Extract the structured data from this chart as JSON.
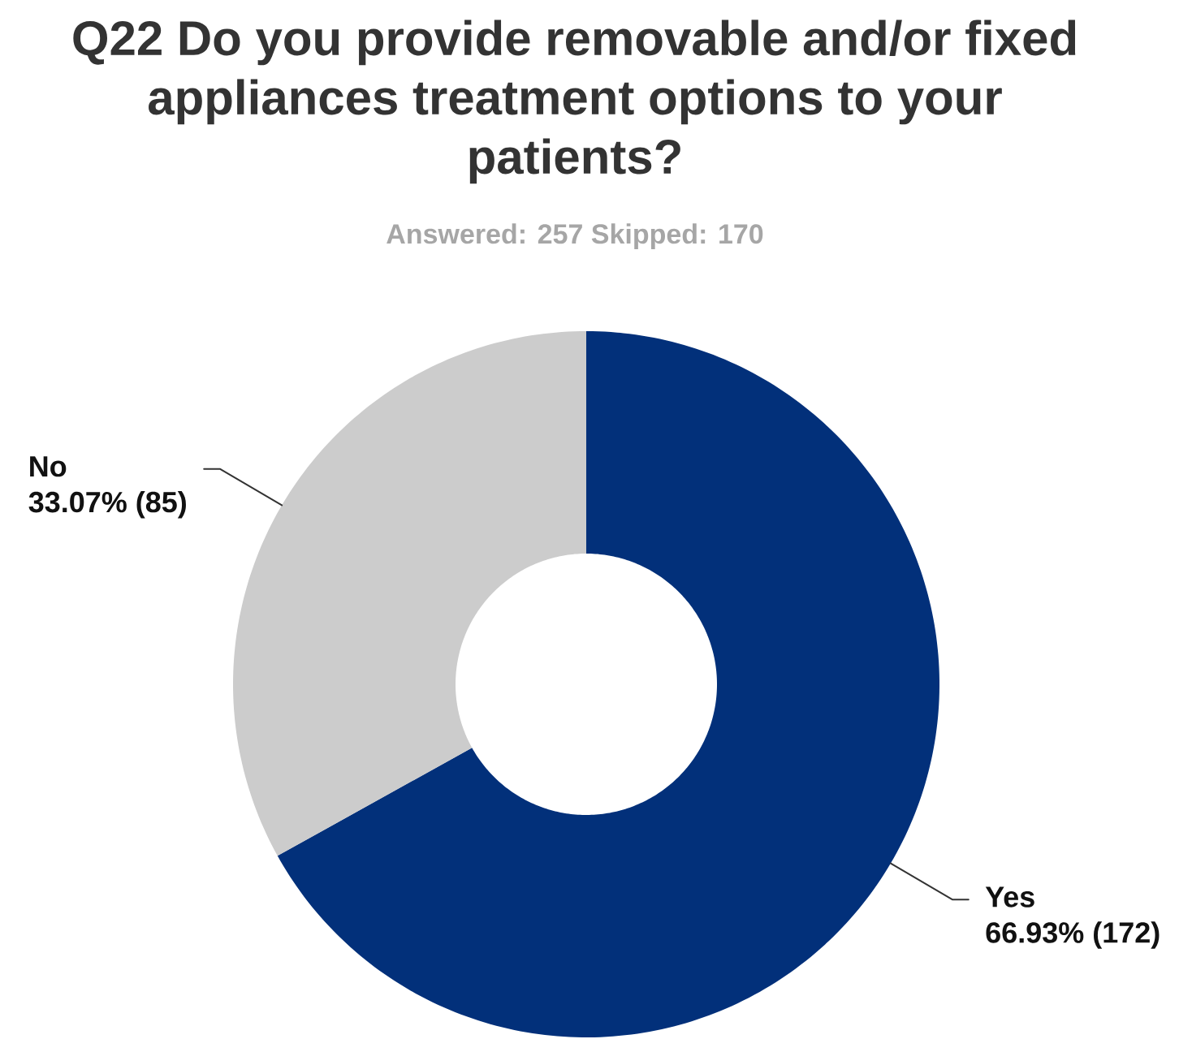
{
  "chart_data": {
    "type": "donut",
    "title": "Q22 Do you provide removable and/or fixed appliances treatment options to your patients?",
    "subtitle": "Answered: 257 Skipped: 170",
    "categories": [
      "Yes",
      "No"
    ],
    "values": [
      172,
      85
    ],
    "value_labels": [
      "66.93% (172)",
      "33.07% (85)"
    ],
    "colors": [
      "#02307a",
      "#cccccc"
    ]
  }
}
